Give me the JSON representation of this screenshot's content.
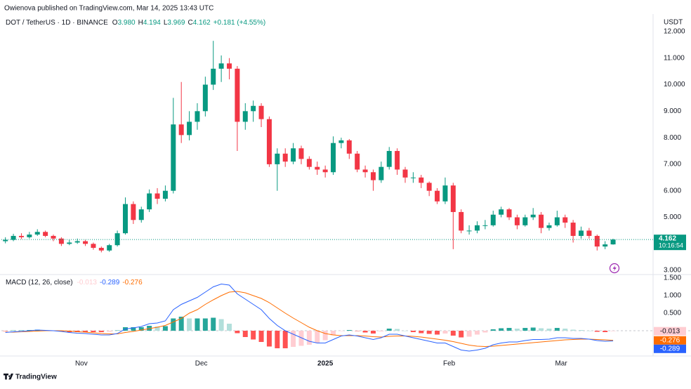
{
  "header": "Owienova published on TradingView.com, Mar 14, 2025 13:43 UTC",
  "footer": "TradingView",
  "chart_data": [
    {
      "type": "candlestick",
      "symbol": "DOT / TetherUS · 1D · BINANCE",
      "legend": [
        {
          "key": "O",
          "text": "3.980"
        },
        {
          "key": "H",
          "text": "4.194"
        },
        {
          "key": "L",
          "text": "3.969"
        },
        {
          "key": "C",
          "text": "4.162"
        }
      ],
      "change": "+0.181 (+4.55%)",
      "currency": "USDT",
      "countdown": "10:16:54",
      "up_color": "#089981",
      "down_color": "#f23645",
      "x": [
        0,
        2,
        4,
        6,
        8,
        10,
        12,
        14,
        16,
        18,
        20,
        22,
        24,
        26,
        28,
        30,
        32,
        34,
        36,
        38,
        40,
        42,
        44,
        46,
        48,
        50,
        52,
        54,
        56,
        58,
        60,
        62,
        64,
        66,
        68,
        70,
        72,
        74,
        76,
        78,
        80,
        82,
        84,
        86,
        88,
        90,
        92,
        94,
        96,
        98,
        100,
        102,
        104,
        106,
        108,
        110,
        112,
        114,
        116,
        118,
        120,
        122,
        124,
        126,
        128,
        130,
        132,
        134,
        136,
        138,
        140,
        142,
        144,
        146,
        148,
        150,
        152
      ],
      "ohlc": [
        [
          4.1,
          4.25,
          4.02,
          4.15
        ],
        [
          4.15,
          4.38,
          4.1,
          4.3
        ],
        [
          4.3,
          4.4,
          4.18,
          4.25
        ],
        [
          4.25,
          4.45,
          4.2,
          4.35
        ],
        [
          4.35,
          4.55,
          4.3,
          4.45
        ],
        [
          4.45,
          4.5,
          4.25,
          4.3
        ],
        [
          4.3,
          4.35,
          4.1,
          4.2
        ],
        [
          4.2,
          4.25,
          3.92,
          4.0
        ],
        [
          4.0,
          4.15,
          3.95,
          4.05
        ],
        [
          4.05,
          4.2,
          4.0,
          4.1
        ],
        [
          4.1,
          4.15,
          3.92,
          4.0
        ],
        [
          4.0,
          4.05,
          3.78,
          3.85
        ],
        [
          3.85,
          3.9,
          3.68,
          3.75
        ],
        [
          3.75,
          4.0,
          3.7,
          3.95
        ],
        [
          3.95,
          4.5,
          3.9,
          4.4
        ],
        [
          4.4,
          5.75,
          4.35,
          5.5
        ],
        [
          5.5,
          5.6,
          4.75,
          4.9
        ],
        [
          4.9,
          5.4,
          4.8,
          5.3
        ],
        [
          5.3,
          6.05,
          5.2,
          5.9
        ],
        [
          5.9,
          6.1,
          5.5,
          5.7
        ],
        [
          5.7,
          6.2,
          5.6,
          6.0
        ],
        [
          6.0,
          9.5,
          5.9,
          8.5
        ],
        [
          8.5,
          10.1,
          7.8,
          8.1
        ],
        [
          8.1,
          9.0,
          7.9,
          8.6
        ],
        [
          8.6,
          9.3,
          8.3,
          9.0
        ],
        [
          9.0,
          10.3,
          8.8,
          10.0
        ],
        [
          10.0,
          11.65,
          9.8,
          10.6
        ],
        [
          10.6,
          11.1,
          10.1,
          10.8
        ],
        [
          10.8,
          11.0,
          10.2,
          10.6
        ],
        [
          10.6,
          10.7,
          7.5,
          8.6
        ],
        [
          8.6,
          9.3,
          8.3,
          9.0
        ],
        [
          9.0,
          9.4,
          8.6,
          9.2
        ],
        [
          9.2,
          9.3,
          8.4,
          8.7
        ],
        [
          8.7,
          8.8,
          6.9,
          7.0
        ],
        [
          7.0,
          7.6,
          6.0,
          7.4
        ],
        [
          7.4,
          7.6,
          6.9,
          7.1
        ],
        [
          7.1,
          7.8,
          7.0,
          7.6
        ],
        [
          7.6,
          7.7,
          7.0,
          7.2
        ],
        [
          7.2,
          7.3,
          6.8,
          6.9
        ],
        [
          6.9,
          7.1,
          6.6,
          6.8
        ],
        [
          6.8,
          6.95,
          6.5,
          6.7
        ],
        [
          6.7,
          8.05,
          6.6,
          7.8
        ],
        [
          7.8,
          8.0,
          7.6,
          7.9
        ],
        [
          7.9,
          7.95,
          7.2,
          7.4
        ],
        [
          7.4,
          7.5,
          6.7,
          6.8
        ],
        [
          6.8,
          6.95,
          6.5,
          6.7
        ],
        [
          6.7,
          6.8,
          6.0,
          6.4
        ],
        [
          6.4,
          7.1,
          6.3,
          6.9
        ],
        [
          6.9,
          7.65,
          6.8,
          7.5
        ],
        [
          7.5,
          7.6,
          6.6,
          6.8
        ],
        [
          6.8,
          6.9,
          6.3,
          6.5
        ],
        [
          6.5,
          6.7,
          6.3,
          6.5
        ],
        [
          6.5,
          6.6,
          6.1,
          6.3
        ],
        [
          6.3,
          6.35,
          5.8,
          6.0
        ],
        [
          6.0,
          6.1,
          5.5,
          5.6
        ],
        [
          5.6,
          6.5,
          5.5,
          6.2
        ],
        [
          6.2,
          6.3,
          3.8,
          5.2
        ],
        [
          5.2,
          5.3,
          4.4,
          4.5
        ],
        [
          4.5,
          4.7,
          4.35,
          4.5
        ],
        [
          4.5,
          4.85,
          4.4,
          4.7
        ],
        [
          4.7,
          4.9,
          4.55,
          4.7
        ],
        [
          4.7,
          5.25,
          4.65,
          5.1
        ],
        [
          5.1,
          5.4,
          5.0,
          5.3
        ],
        [
          5.3,
          5.35,
          4.9,
          5.0
        ],
        [
          5.0,
          5.1,
          4.55,
          4.7
        ],
        [
          4.7,
          5.1,
          4.65,
          5.0
        ],
        [
          5.0,
          5.35,
          4.9,
          5.1
        ],
        [
          5.1,
          5.2,
          4.4,
          4.6
        ],
        [
          4.6,
          4.8,
          4.5,
          4.7
        ],
        [
          4.7,
          5.25,
          4.65,
          5.0
        ],
        [
          5.0,
          5.1,
          4.6,
          4.8
        ],
        [
          4.8,
          4.9,
          4.05,
          4.3
        ],
        [
          4.3,
          4.65,
          4.2,
          4.5
        ],
        [
          4.5,
          4.6,
          4.2,
          4.3
        ],
        [
          4.3,
          4.35,
          3.75,
          3.9
        ],
        [
          3.9,
          4.1,
          3.8,
          3.98
        ],
        [
          3.98,
          4.194,
          3.969,
          4.162
        ]
      ],
      "xlim": [
        -1,
        162
      ],
      "xticks": [
        {
          "value": 19,
          "label": "Nov"
        },
        {
          "value": 49,
          "label": "Dec"
        },
        {
          "value": 80,
          "label": "2025"
        },
        {
          "value": 111,
          "label": "Feb"
        },
        {
          "value": 139,
          "label": "Mar"
        }
      ],
      "ylim": [
        2.87,
        12.66
      ],
      "yticks": [
        {
          "value": 3,
          "label": "3.000"
        },
        {
          "value": 5,
          "label": "5.000"
        },
        {
          "value": 6,
          "label": "6.000"
        },
        {
          "value": 7,
          "label": "7.000"
        },
        {
          "value": 8,
          "label": "8.000"
        },
        {
          "value": 9,
          "label": "9.000"
        },
        {
          "value": 10,
          "label": "10.000"
        },
        {
          "value": 11,
          "label": "11.000"
        },
        {
          "value": 12,
          "label": "12.000"
        }
      ],
      "grid": false
    },
    {
      "type": "macd",
      "title": "MACD (12, 26, close)",
      "histogram": {
        "colors": [
          "#26a69a",
          "#b2dfdb",
          "#ffcdd2",
          "#ff5252"
        ],
        "values": [
          -0.01,
          0.01,
          0.01,
          0.02,
          0.03,
          0.01,
          0,
          -0.02,
          -0.04,
          -0.04,
          -0.04,
          -0.04,
          -0.04,
          -0.03,
          0.01,
          0.1,
          0.1,
          0.1,
          0.14,
          0.12,
          0.13,
          0.35,
          0.4,
          0.35,
          0.35,
          0.35,
          0.37,
          0.33,
          0.2,
          -0.07,
          -0.18,
          -0.25,
          -0.32,
          -0.45,
          -0.5,
          -0.5,
          -0.46,
          -0.43,
          -0.4,
          -0.35,
          -0.27,
          -0.13,
          -0.01,
          0.02,
          -0.01,
          -0.05,
          -0.08,
          -0.02,
          0.06,
          0.05,
          0,
          -0.04,
          -0.07,
          -0.09,
          -0.11,
          -0.08,
          -0.14,
          -0.19,
          -0.17,
          -0.11,
          -0.05,
          0.04,
          0.07,
          0.08,
          0.06,
          0.08,
          0.09,
          0.07,
          0.06,
          0.08,
          0.06,
          0.03,
          0.02,
          0,
          -0.03,
          -0.04,
          -0.013
        ]
      },
      "macd": {
        "color": "#2962ff",
        "values": [
          -0.05,
          -0.03,
          -0.02,
          0,
          0.02,
          0.01,
          0,
          -0.02,
          -0.05,
          -0.07,
          -0.08,
          -0.1,
          -0.12,
          -0.12,
          -0.08,
          0.05,
          0.08,
          0.12,
          0.2,
          0.22,
          0.28,
          0.6,
          0.75,
          0.85,
          0.95,
          1.1,
          1.25,
          1.33,
          1.3,
          1.05,
          0.9,
          0.75,
          0.6,
          0.35,
          0.15,
          0,
          -0.1,
          -0.2,
          -0.3,
          -0.35,
          -0.35,
          -0.25,
          -0.15,
          -0.12,
          -0.15,
          -0.2,
          -0.25,
          -0.2,
          -0.1,
          -0.1,
          -0.15,
          -0.2,
          -0.25,
          -0.3,
          -0.35,
          -0.35,
          -0.45,
          -0.55,
          -0.58,
          -0.55,
          -0.5,
          -0.4,
          -0.35,
          -0.32,
          -0.32,
          -0.28,
          -0.25,
          -0.25,
          -0.24,
          -0.2,
          -0.2,
          -0.22,
          -0.22,
          -0.24,
          -0.28,
          -0.3,
          -0.289
        ]
      },
      "signal": {
        "color": "#ff6d00",
        "values": [
          -0.04,
          -0.04,
          -0.03,
          -0.02,
          -0.01,
          0,
          0,
          0,
          -0.01,
          -0.03,
          -0.04,
          -0.06,
          -0.08,
          -0.09,
          -0.09,
          -0.05,
          -0.02,
          0.02,
          0.06,
          0.1,
          0.15,
          0.25,
          0.35,
          0.5,
          0.6,
          0.75,
          0.88,
          1.0,
          1.1,
          1.12,
          1.08,
          1.0,
          0.92,
          0.8,
          0.65,
          0.5,
          0.36,
          0.23,
          0.1,
          0,
          -0.08,
          -0.12,
          -0.14,
          -0.14,
          -0.14,
          -0.15,
          -0.17,
          -0.18,
          -0.16,
          -0.15,
          -0.15,
          -0.16,
          -0.18,
          -0.21,
          -0.24,
          -0.27,
          -0.31,
          -0.36,
          -0.41,
          -0.44,
          -0.45,
          -0.44,
          -0.42,
          -0.4,
          -0.38,
          -0.36,
          -0.34,
          -0.32,
          -0.3,
          -0.28,
          -0.26,
          -0.25,
          -0.24,
          -0.24,
          -0.25,
          -0.26,
          -0.276
        ]
      },
      "ylim": [
        -0.68,
        1.58
      ],
      "yticks": [
        {
          "value": 0.5,
          "label": "0.500"
        },
        {
          "value": 1,
          "label": "1.000"
        },
        {
          "value": 1.5,
          "label": "1.500"
        }
      ],
      "zero_line": true
    }
  ]
}
